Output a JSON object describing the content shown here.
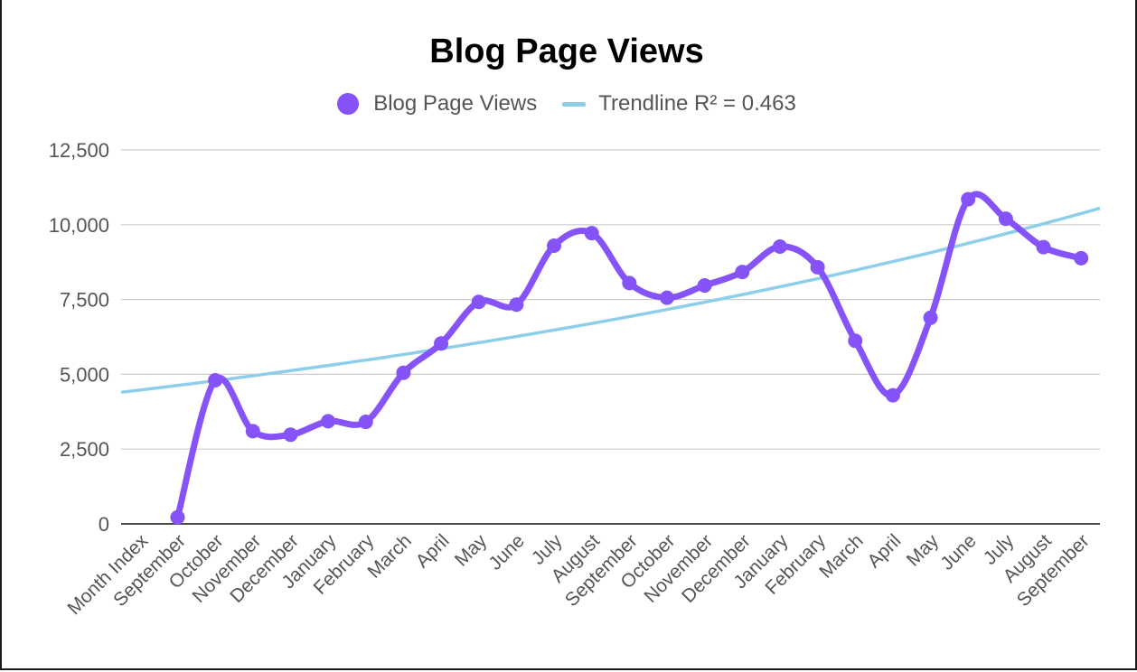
{
  "colors": {
    "series": "#8553f8",
    "trendline": "#8dcfea",
    "gridline": "#cccccc",
    "axis": "#333333",
    "tick_label": "#555555"
  },
  "chart_data": {
    "type": "line",
    "title": "Blog Page Views",
    "curve": "smooth",
    "grid": true,
    "legend_position": "top",
    "ylim": [
      0,
      12500
    ],
    "yticks": [
      0,
      2500,
      5000,
      7500,
      10000,
      12500
    ],
    "ytick_labels": [
      "0",
      "2,500",
      "5,000",
      "7,500",
      "10,000",
      "12,500"
    ],
    "categories": [
      "Month Index",
      "September",
      "October",
      "November",
      "December",
      "January",
      "February",
      "March",
      "April",
      "May",
      "June",
      "July",
      "August",
      "September",
      "October",
      "November",
      "December",
      "January",
      "February",
      "March",
      "April",
      "May",
      "June",
      "July",
      "August",
      "September"
    ],
    "series": [
      {
        "name": "Blog Page Views",
        "marker": "circle",
        "values": [
          null,
          220,
          4800,
          3100,
          2980,
          3430,
          3410,
          5050,
          6030,
          7420,
          7330,
          9300,
          9720,
          8050,
          7560,
          7970,
          8420,
          9270,
          8580,
          6120,
          4300,
          6890,
          10850,
          10200,
          9250,
          8880
        ]
      }
    ],
    "trendline": {
      "label": "Trendline R² = 0.463",
      "type": "exponential",
      "r_squared": 0.463,
      "values_at_ends": [
        4400,
        10550
      ]
    }
  }
}
